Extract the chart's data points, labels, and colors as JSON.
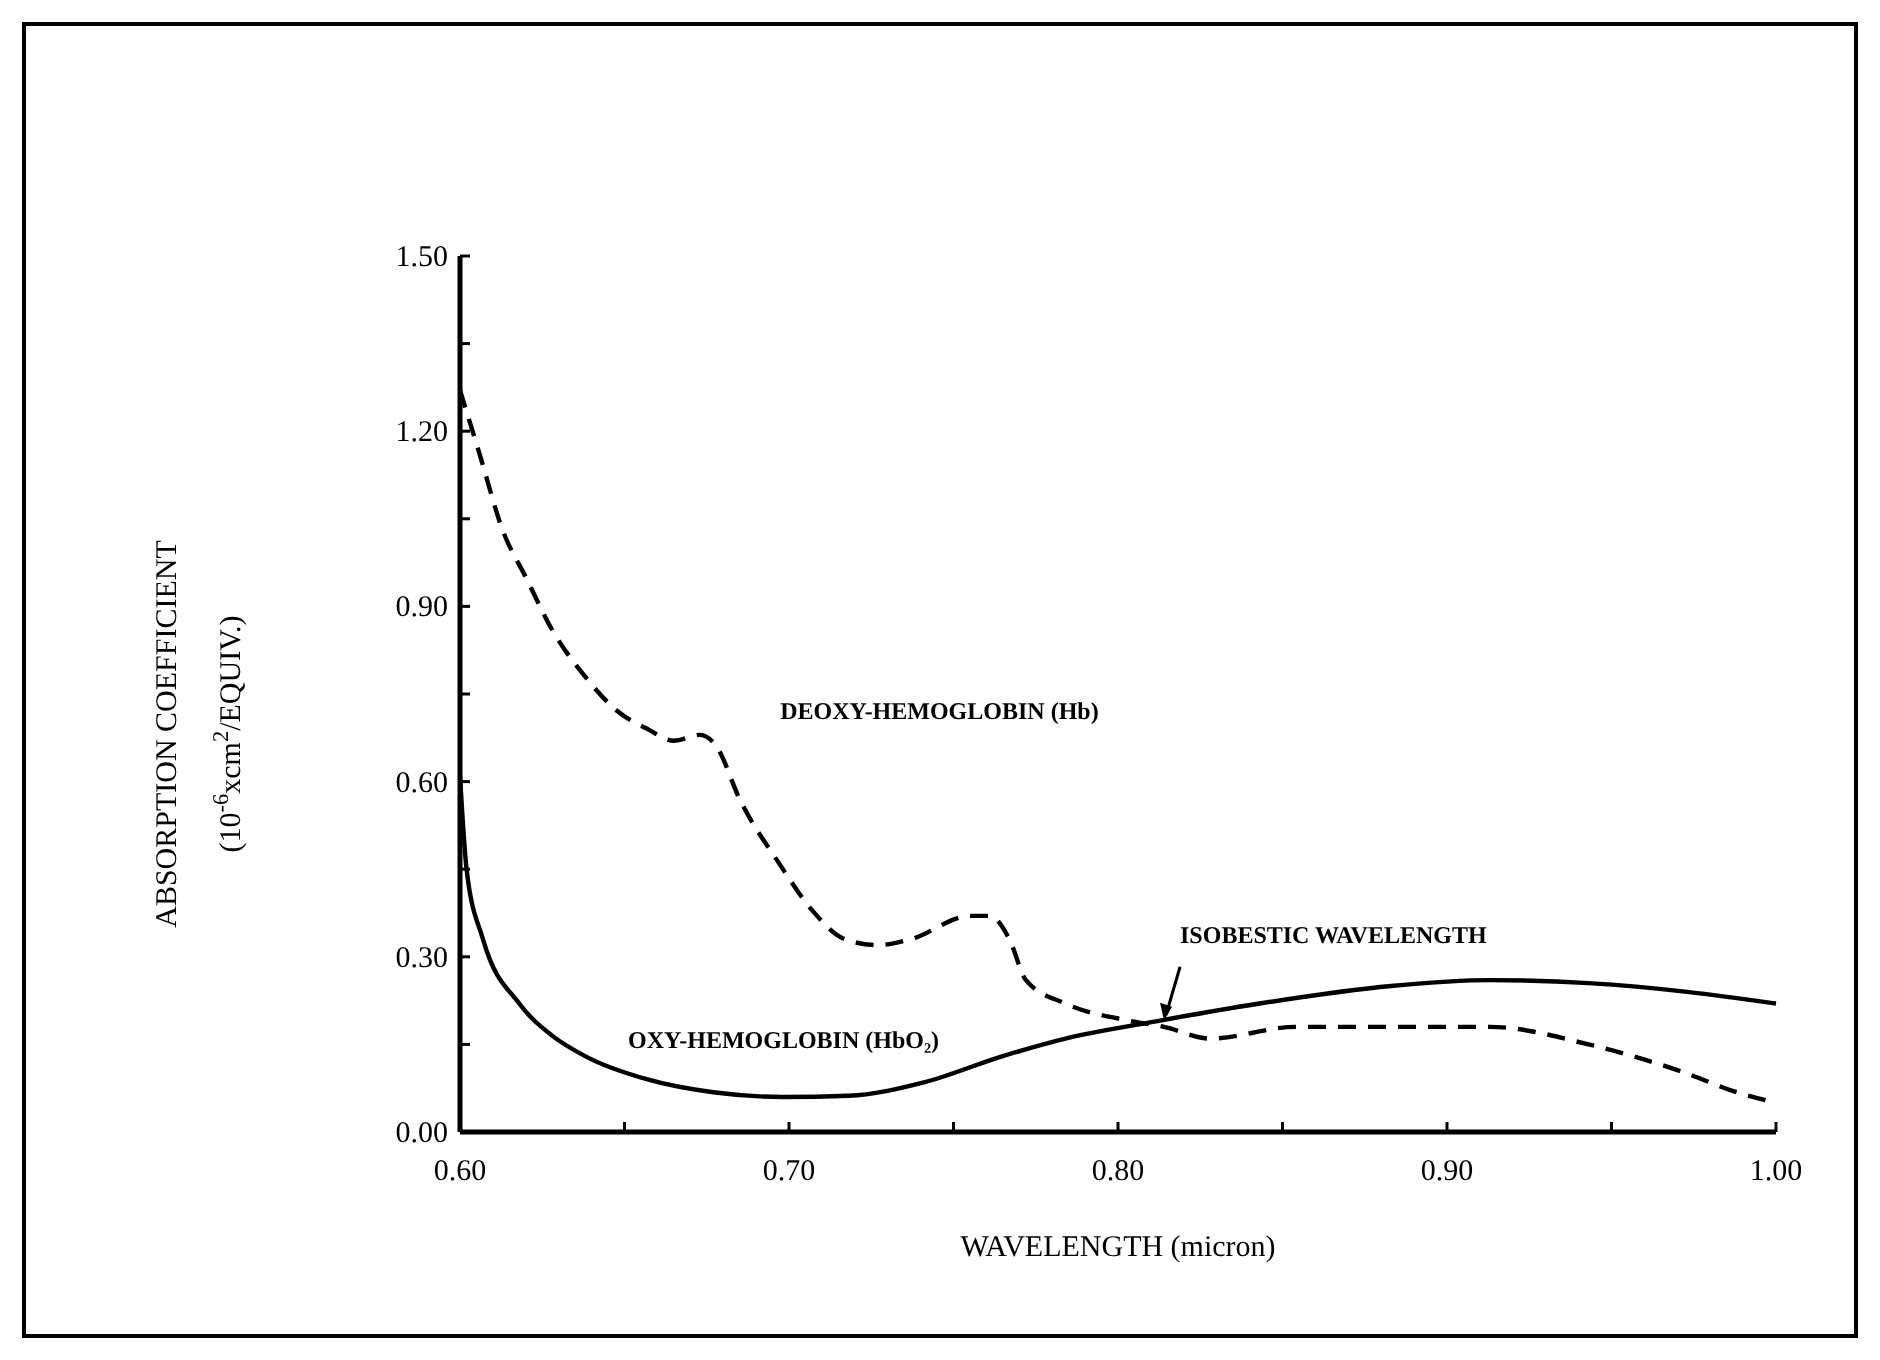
{
  "chart_data": {
    "type": "line",
    "xlabel": "WAVELENGTH (micron)",
    "ylabel": "ABSORPTION COEFFICIENT\n(10$^{-6}$xcm$^{2}$/EQUIV.)",
    "xlim": [
      0.6,
      1.0
    ],
    "xticks": [
      {
        "value": 0.6,
        "label": "0.60"
      },
      {
        "value": 0.65,
        "label": null
      },
      {
        "value": 0.7,
        "label": "0.70"
      },
      {
        "value": 0.75,
        "label": null
      },
      {
        "value": 0.8,
        "label": "0.80"
      },
      {
        "value": 0.85,
        "label": null
      },
      {
        "value": 0.9,
        "label": "0.90"
      },
      {
        "value": 0.95,
        "label": null
      },
      {
        "value": 1.0,
        "label": "1.00"
      }
    ],
    "ylim": [
      0,
      1.5
    ],
    "yticks": [
      {
        "value": 0,
        "label": "0.00"
      },
      {
        "value": 0.15,
        "label": null
      },
      {
        "value": 0.3,
        "label": "0.30"
      },
      {
        "value": 0.45,
        "label": null
      },
      {
        "value": 0.6,
        "label": "0.60"
      },
      {
        "value": 0.75,
        "label": null
      },
      {
        "value": 0.9,
        "label": "0.90"
      },
      {
        "value": 1.05,
        "label": null
      },
      {
        "value": 1.2,
        "label": "1.20"
      },
      {
        "value": 1.35,
        "label": null
      },
      {
        "value": 1.5,
        "label": "1.50"
      }
    ],
    "grid": false,
    "series": [
      {
        "name": "DEOXY-HEMOGLOBIN (Hb)",
        "color": "#000000",
        "line_style": "dashed",
        "x": [
          0.6,
          0.606,
          0.613,
          0.62,
          0.628,
          0.638,
          0.648,
          0.657,
          0.665,
          0.673,
          0.678,
          0.685,
          0.697,
          0.707,
          0.717,
          0.727,
          0.737,
          0.755,
          0.761,
          0.767,
          0.772,
          0.784,
          0.804,
          0.814,
          0.828,
          0.854,
          0.883,
          0.913,
          0.943,
          0.973,
          0.987,
          1.0
        ],
        "values": [
          1.27,
          1.16,
          1.03,
          0.95,
          0.86,
          0.78,
          0.72,
          0.69,
          0.67,
          0.68,
          0.66,
          0.57,
          0.46,
          0.38,
          0.33,
          0.32,
          0.33,
          0.37,
          0.37,
          0.33,
          0.26,
          0.22,
          0.19,
          0.18,
          0.16,
          0.18,
          0.18,
          0.18,
          0.15,
          0.1,
          0.07,
          0.05
        ]
      },
      {
        "name": "OXY-HEMOGLOBIN (HbO₂)",
        "color": "#000000",
        "line_style": "solid",
        "x": [
          0.6,
          0.602,
          0.607,
          0.618,
          0.628,
          0.638,
          0.657,
          0.677,
          0.698,
          0.718,
          0.741,
          0.765,
          0.784,
          0.812,
          0.843,
          0.883,
          0.913,
          0.943,
          0.973,
          0.987,
          1.0
        ],
        "values": [
          0.61,
          0.45,
          0.33,
          0.22,
          0.165,
          0.13,
          0.09,
          0.068,
          0.06,
          0.062,
          0.085,
          0.13,
          0.16,
          0.19,
          0.22,
          0.25,
          0.26,
          0.255,
          0.24,
          0.23,
          0.22
        ]
      }
    ],
    "annotations": [
      {
        "text": "ISOBESTIC WAVELENGTH",
        "x": 0.814,
        "y": 0.187
      }
    ]
  }
}
